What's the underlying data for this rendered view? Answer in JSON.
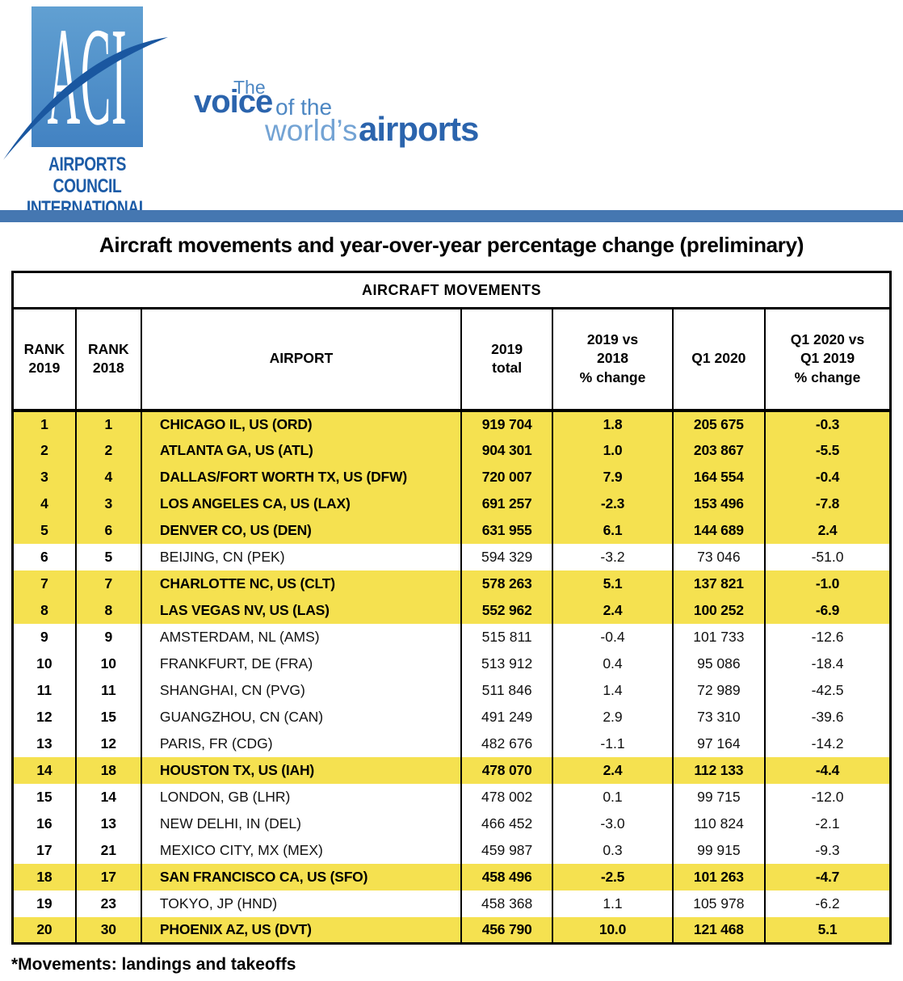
{
  "logo": {
    "acronym": "ACI",
    "caption_line1": "AIRPORTS COUNCIL",
    "caption_line2": "INTERNATIONAL",
    "tagline": {
      "the": "The",
      "voice": "voice",
      "of_the": "of the",
      "worlds": "world’s",
      "airports": "airports"
    }
  },
  "colors": {
    "highlight": "#F5E150",
    "bar_blue": "#4577B1",
    "dark_blue": "#2B64AD",
    "light_blue": "#4D87C3",
    "lighter_blue": "#73A3D4",
    "caption_blue": "#1D5CA7",
    "swoosh_blue": "#1A57A0",
    "logo_box_top": "#61A0D2",
    "logo_box_bottom": "#4282C2"
  },
  "title": "Aircraft movements and year-over-year percentage change (preliminary)",
  "table": {
    "banner": "AIRCRAFT MOVEMENTS",
    "columns": [
      {
        "key": "rank_2019",
        "label": "RANK\n2019"
      },
      {
        "key": "rank_2018",
        "label": "RANK\n2018"
      },
      {
        "key": "airport",
        "label": "AIRPORT"
      },
      {
        "key": "total_2019",
        "label": "2019\ntotal"
      },
      {
        "key": "chg_2019_2018",
        "label": "2019 vs\n2018\n% change"
      },
      {
        "key": "q1_2020",
        "label": "Q1 2020"
      },
      {
        "key": "chg_q1_2020_q1_2019",
        "label": "Q1 2020 vs\nQ1 2019\n% change"
      }
    ],
    "rows": [
      {
        "rank_2019": "1",
        "rank_2018": "1",
        "airport": "CHICAGO IL, US (ORD)",
        "total_2019": "919 704",
        "chg_2019_2018": "1.8",
        "q1_2020": "205 675",
        "chg_q1_2020_q1_2019": "-0.3",
        "highlight": true
      },
      {
        "rank_2019": "2",
        "rank_2018": "2",
        "airport": "ATLANTA GA, US (ATL)",
        "total_2019": "904 301",
        "chg_2019_2018": "1.0",
        "q1_2020": "203 867",
        "chg_q1_2020_q1_2019": "-5.5",
        "highlight": true
      },
      {
        "rank_2019": "3",
        "rank_2018": "4",
        "airport": "DALLAS/FORT WORTH TX, US (DFW)",
        "total_2019": "720 007",
        "chg_2019_2018": "7.9",
        "q1_2020": "164 554",
        "chg_q1_2020_q1_2019": "-0.4",
        "highlight": true
      },
      {
        "rank_2019": "4",
        "rank_2018": "3",
        "airport": "LOS ANGELES CA, US (LAX)",
        "total_2019": "691 257",
        "chg_2019_2018": "-2.3",
        "q1_2020": "153 496",
        "chg_q1_2020_q1_2019": "-7.8",
        "highlight": true
      },
      {
        "rank_2019": "5",
        "rank_2018": "6",
        "airport": "DENVER CO, US (DEN)",
        "total_2019": "631 955",
        "chg_2019_2018": "6.1",
        "q1_2020": "144 689",
        "chg_q1_2020_q1_2019": "2.4",
        "highlight": true
      },
      {
        "rank_2019": "6",
        "rank_2018": "5",
        "airport": "BEIJING, CN (PEK)",
        "total_2019": "594 329",
        "chg_2019_2018": "-3.2",
        "q1_2020": "73 046",
        "chg_q1_2020_q1_2019": "-51.0",
        "highlight": false
      },
      {
        "rank_2019": "7",
        "rank_2018": "7",
        "airport": "CHARLOTTE NC, US (CLT)",
        "total_2019": "578 263",
        "chg_2019_2018": "5.1",
        "q1_2020": "137 821",
        "chg_q1_2020_q1_2019": "-1.0",
        "highlight": true
      },
      {
        "rank_2019": "8",
        "rank_2018": "8",
        "airport": "LAS VEGAS NV, US (LAS)",
        "total_2019": "552 962",
        "chg_2019_2018": "2.4",
        "q1_2020": "100 252",
        "chg_q1_2020_q1_2019": "-6.9",
        "highlight": true
      },
      {
        "rank_2019": "9",
        "rank_2018": "9",
        "airport": "AMSTERDAM, NL (AMS)",
        "total_2019": "515 811",
        "chg_2019_2018": "-0.4",
        "q1_2020": "101 733",
        "chg_q1_2020_q1_2019": "-12.6",
        "highlight": false
      },
      {
        "rank_2019": "10",
        "rank_2018": "10",
        "airport": "FRANKFURT, DE (FRA)",
        "total_2019": "513 912",
        "chg_2019_2018": "0.4",
        "q1_2020": "95 086",
        "chg_q1_2020_q1_2019": "-18.4",
        "highlight": false
      },
      {
        "rank_2019": "11",
        "rank_2018": "11",
        "airport": "SHANGHAI, CN (PVG)",
        "total_2019": "511 846",
        "chg_2019_2018": "1.4",
        "q1_2020": "72 989",
        "chg_q1_2020_q1_2019": "-42.5",
        "highlight": false
      },
      {
        "rank_2019": "12",
        "rank_2018": "15",
        "airport": "GUANGZHOU, CN (CAN)",
        "total_2019": "491 249",
        "chg_2019_2018": "2.9",
        "q1_2020": "73 310",
        "chg_q1_2020_q1_2019": "-39.6",
        "highlight": false
      },
      {
        "rank_2019": "13",
        "rank_2018": "12",
        "airport": "PARIS, FR (CDG)",
        "total_2019": "482 676",
        "chg_2019_2018": "-1.1",
        "q1_2020": "97 164",
        "chg_q1_2020_q1_2019": "-14.2",
        "highlight": false
      },
      {
        "rank_2019": "14",
        "rank_2018": "18",
        "airport": "HOUSTON TX, US (IAH)",
        "total_2019": "478 070",
        "chg_2019_2018": "2.4",
        "q1_2020": "112 133",
        "chg_q1_2020_q1_2019": "-4.4",
        "highlight": true
      },
      {
        "rank_2019": "15",
        "rank_2018": "14",
        "airport": "LONDON, GB (LHR)",
        "total_2019": "478 002",
        "chg_2019_2018": "0.1",
        "q1_2020": "99 715",
        "chg_q1_2020_q1_2019": "-12.0",
        "highlight": false
      },
      {
        "rank_2019": "16",
        "rank_2018": "13",
        "airport": "NEW DELHI, IN (DEL)",
        "total_2019": "466 452",
        "chg_2019_2018": "-3.0",
        "q1_2020": "110 824",
        "chg_q1_2020_q1_2019": "-2.1",
        "highlight": false
      },
      {
        "rank_2019": "17",
        "rank_2018": "21",
        "airport": "MEXICO CITY, MX (MEX)",
        "total_2019": "459 987",
        "chg_2019_2018": "0.3",
        "q1_2020": "99 915",
        "chg_q1_2020_q1_2019": "-9.3",
        "highlight": false
      },
      {
        "rank_2019": "18",
        "rank_2018": "17",
        "airport": "SAN FRANCISCO CA, US (SFO)",
        "total_2019": "458 496",
        "chg_2019_2018": "-2.5",
        "q1_2020": "101 263",
        "chg_q1_2020_q1_2019": "-4.7",
        "highlight": true
      },
      {
        "rank_2019": "19",
        "rank_2018": "23",
        "airport": "TOKYO, JP (HND)",
        "total_2019": "458 368",
        "chg_2019_2018": "1.1",
        "q1_2020": "105 978",
        "chg_q1_2020_q1_2019": "-6.2",
        "highlight": false
      },
      {
        "rank_2019": "20",
        "rank_2018": "30",
        "airport": "PHOENIX AZ, US (DVT)",
        "total_2019": "456 790",
        "chg_2019_2018": "10.0",
        "q1_2020": "121 468",
        "chg_q1_2020_q1_2019": "5.1",
        "highlight": true
      }
    ]
  },
  "footnote": "*Movements: landings and takeoffs"
}
